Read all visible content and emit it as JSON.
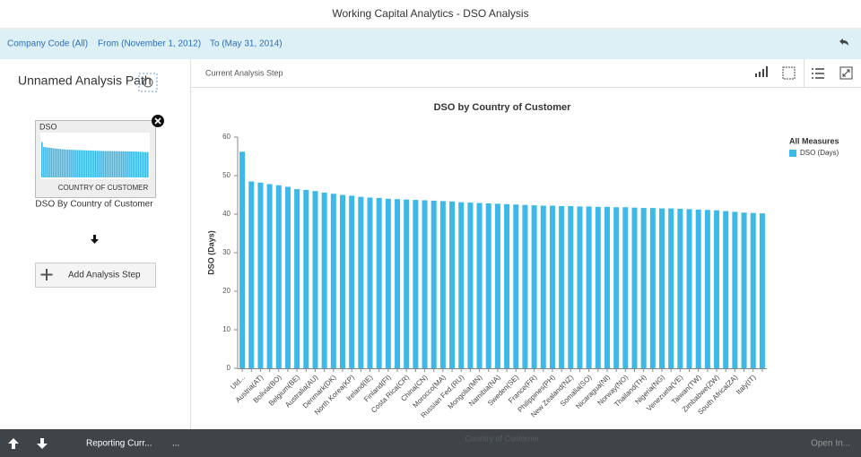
{
  "header": {
    "title": "Working Capital Analytics - DSO Analysis"
  },
  "filters": [
    "Company Code (All)",
    "From (November 1, 2012)",
    "To (May 31, 2014)"
  ],
  "analysis_path": {
    "title": "Unnamed Analysis Path",
    "step": {
      "thumbnail_title": "DSO",
      "thumbnail_axis": "COUNTRY OF CUSTOMER",
      "label": "DSO By Country of Customer"
    },
    "add_step": "Add Analysis Step"
  },
  "panel": {
    "title": "Current Analysis Step"
  },
  "chart_data": {
    "type": "bar",
    "title": "DSO by Country of Customer",
    "ylabel": "DSO (Days)",
    "xlabel": "Country of Customer",
    "legend_title": "All Measures",
    "legend": "right",
    "categories": [
      "Utd...",
      null,
      "Austria(AT)",
      null,
      "Bolivia(BO)",
      null,
      "Belgium(BE)",
      null,
      "Australia(AU)",
      null,
      "Denmark(DK)",
      null,
      "North Korea(KP)",
      null,
      "Ireland(IE)",
      null,
      "Finland(FI)",
      null,
      "Costa Rica(CR)",
      null,
      "China(CN)",
      null,
      "Morocco(MA)",
      null,
      "Russian Fed.(RU)",
      null,
      "Mongolia(MN)",
      null,
      "Namibia(NA)",
      null,
      "Sweden(SE)",
      null,
      "France(FR)",
      null,
      "Philippines(PH)",
      null,
      "New Zealand(NZ)",
      null,
      "Somalia(SO)",
      null,
      "Nicaragua(NI)",
      null,
      "Norway(NO)",
      null,
      "Thailand(TH)",
      null,
      "Nigeria(NG)",
      null,
      "Venezuela(VE)",
      null,
      "Taiwan(TW)",
      null,
      "Zimbabwe(ZW)",
      null,
      "South Africa(ZA)",
      null,
      "Italy(IT)",
      null
    ],
    "series": [
      {
        "name": "DSO (Days)",
        "color": "#3cb9e8",
        "values": [
          56.2,
          48.5,
          48.2,
          47.8,
          47.5,
          47.1,
          46.5,
          46.3,
          46.0,
          45.6,
          45.3,
          45.0,
          44.8,
          44.5,
          44.3,
          44.2,
          44.0,
          43.9,
          43.8,
          43.7,
          43.6,
          43.5,
          43.4,
          43.3,
          43.1,
          43.0,
          42.9,
          42.8,
          42.7,
          42.6,
          42.5,
          42.4,
          42.3,
          42.2,
          42.2,
          42.1,
          42.1,
          42.0,
          42.0,
          41.9,
          41.9,
          41.8,
          41.8,
          41.7,
          41.6,
          41.6,
          41.5,
          41.5,
          41.4,
          41.3,
          41.2,
          41.1,
          41.0,
          40.8,
          40.6,
          40.4,
          40.3,
          40.2
        ]
      }
    ],
    "ylim": [
      0,
      60
    ],
    "yticks": [
      0,
      10,
      20,
      30,
      40,
      50,
      60
    ]
  },
  "footer": {
    "items": [
      "Reporting Curr...",
      "..."
    ],
    "action": "Open In..."
  }
}
